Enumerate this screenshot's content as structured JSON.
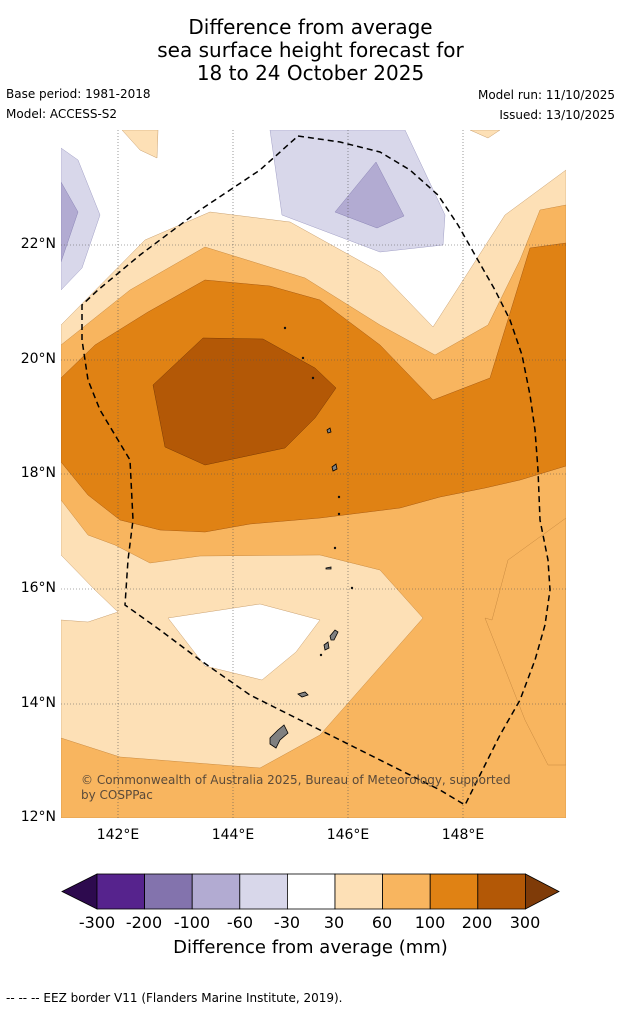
{
  "title": {
    "line1": "Difference from average",
    "line2": "sea surface height forecast for",
    "line3": "18 to 24 October 2025"
  },
  "meta": {
    "base_period": "Base period: 1981-2018",
    "model": "Model: ACCESS-S2",
    "model_run": "Model run: 11/10/2025",
    "issued": "Issued: 13/10/2025"
  },
  "map": {
    "lat_labels": [
      "22°N",
      "20°N",
      "18°N",
      "16°N",
      "14°N",
      "12°N"
    ],
    "lon_labels": [
      "142°E",
      "144°E",
      "146°E",
      "148°E"
    ],
    "copyright": "© Commonwealth of Australia 2025, Bureau of Meteorology, supported by COSPPac"
  },
  "colorbar": {
    "ticks": [
      "-300",
      "-200",
      "-100",
      "-60",
      "-30",
      "30",
      "60",
      "100",
      "200",
      "300"
    ],
    "colors": [
      "#2d0a4e",
      "#56238d",
      "#8373ad",
      "#b2abd2",
      "#d8d7ea",
      "#ffffff",
      "#fde0b6",
      "#f8b55f",
      "#e08214",
      "#b35806",
      "#7f3b08"
    ],
    "label": "Difference from average (mm)"
  },
  "legend": {
    "eez": "--  --  -- EEZ border V11 (Flanders Marine Institute, 2019)."
  }
}
